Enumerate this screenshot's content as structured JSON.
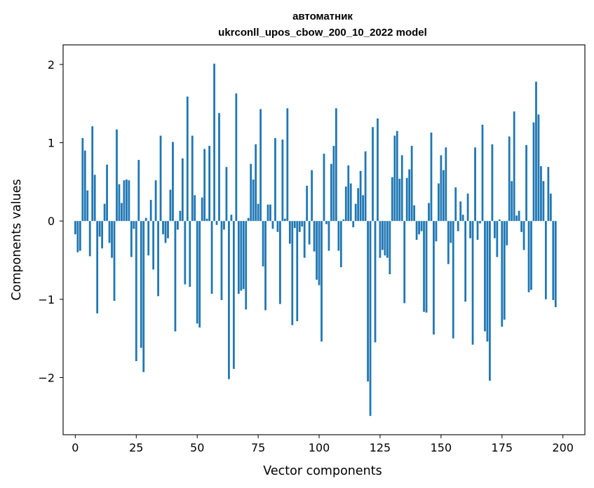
{
  "chart_data": {
    "type": "bar",
    "title": "автоматник",
    "subtitle": "ukrconll_upos_cbow_200_10_2022 model",
    "xlabel": "Vector components",
    "ylabel": "Components values",
    "xlim": [
      -5,
      209
    ],
    "ylim": [
      -2.73,
      2.25
    ],
    "xticks": [
      0,
      25,
      50,
      75,
      100,
      125,
      150,
      175,
      200
    ],
    "yticks": [
      -2,
      -1,
      0,
      1,
      2
    ],
    "ytick_labels": [
      "−2",
      "−1",
      "0",
      "1",
      "2"
    ],
    "grid": false,
    "legend": "none",
    "bar_color": "#1f77b4",
    "values": [
      -0.17,
      -0.4,
      -0.38,
      1.06,
      0.9,
      0.39,
      -0.45,
      1.21,
      0.59,
      -1.18,
      -0.2,
      -0.35,
      0.22,
      0.72,
      -0.28,
      -0.47,
      -1.02,
      1.17,
      0.47,
      0.23,
      0.52,
      0.53,
      0.52,
      -0.46,
      -0.1,
      -1.79,
      0.78,
      -1.62,
      -1.93,
      0.04,
      -0.44,
      0.27,
      -0.62,
      0.52,
      -0.96,
      1.09,
      -0.17,
      -0.28,
      -0.22,
      0.4,
      1.01,
      -1.41,
      -0.11,
      0.13,
      0.8,
      -0.81,
      1.59,
      -0.84,
      1.09,
      0.33,
      -1.31,
      -1.36,
      0.3,
      0.92,
      0.03,
      0.96,
      -0.93,
      2.01,
      -0.05,
      1.38,
      -1.01,
      -0.11,
      0.69,
      -2.02,
      0.08,
      -1.89,
      1.63,
      -0.93,
      -0.89,
      -0.87,
      -1.13,
      0.04,
      0.73,
      0.53,
      0.98,
      0.22,
      1.43,
      -0.58,
      -1.14,
      0.21,
      0.21,
      -0.1,
      1.06,
      -0.14,
      -1.06,
      1.04,
      0.03,
      1.44,
      -0.29,
      -1.33,
      -0.09,
      -1.28,
      -0.14,
      -0.07,
      -0.47,
      0.45,
      -0.3,
      0.65,
      -0.39,
      -0.75,
      -0.82,
      -1.54,
      0.86,
      -0.04,
      -0.38,
      0.73,
      0.96,
      1.44,
      -0.38,
      -0.59,
      0.02,
      0.44,
      0.71,
      0.48,
      -0.08,
      0.22,
      0.42,
      0.64,
      0.33,
      0.89,
      -2.05,
      -2.49,
      1.2,
      -1.55,
      1.31,
      -0.47,
      -0.37,
      -0.44,
      -0.47,
      -0.68,
      0.56,
      1.09,
      1.15,
      0.54,
      0.84,
      -1.05,
      0.55,
      0.66,
      0.96,
      0.2,
      -0.24,
      -0.17,
      -0.13,
      -1.16,
      -1.17,
      0.23,
      1.13,
      -1.45,
      -0.26,
      0.48,
      0.84,
      0.65,
      0.94,
      -0.55,
      -0.28,
      -1.5,
      0.43,
      -0.13,
      0.25,
      0.08,
      -1.03,
      0.35,
      -0.22,
      -1.58,
      0.94,
      -0.24,
      -0.03,
      1.23,
      -1.41,
      -1.54,
      -2.04,
      0.98,
      -0.22,
      -0.46,
      0.02,
      -1.35,
      -1.26,
      -0.31,
      1.08,
      0.51,
      1.4,
      0.07,
      0.13,
      -0.14,
      -0.37,
      0.97,
      -0.91,
      -0.88,
      1.26,
      1.78,
      1.36,
      0.7,
      0.51,
      -1.0,
      0.69,
      0.35,
      -1.01,
      -1.1
    ]
  }
}
